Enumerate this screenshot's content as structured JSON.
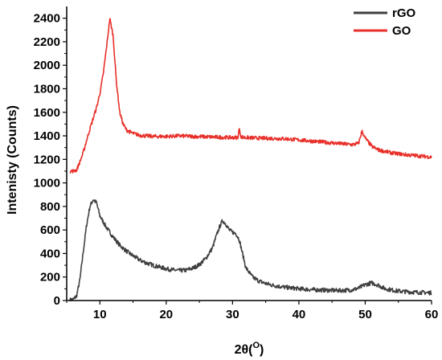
{
  "chart_data": {
    "type": "line",
    "xlabel": "2θ(",
    "xlabel_sup": "O",
    "xlabel_close": ")",
    "ylabel": "Intenisty (Counts)",
    "xlim": [
      5,
      60
    ],
    "ylim": [
      0,
      2500
    ],
    "x_ticks": [
      10,
      20,
      30,
      40,
      50,
      60
    ],
    "y_ticks": [
      0,
      200,
      400,
      600,
      800,
      1000,
      1200,
      1400,
      1600,
      1800,
      2000,
      2200,
      2400
    ],
    "grid": false,
    "legend_position": "top-right",
    "series": [
      {
        "name": "rGO",
        "color": "#404040",
        "points": [
          [
            5.5,
            5
          ],
          [
            6.0,
            10
          ],
          [
            6.5,
            40
          ],
          [
            7.0,
            180
          ],
          [
            7.5,
            420
          ],
          [
            8.0,
            640
          ],
          [
            8.5,
            800
          ],
          [
            9.0,
            860
          ],
          [
            9.5,
            830
          ],
          [
            10.0,
            720
          ],
          [
            11.0,
            620
          ],
          [
            12.0,
            540
          ],
          [
            13.0,
            470
          ],
          [
            14.0,
            420
          ],
          [
            15.0,
            380
          ],
          [
            16.0,
            345
          ],
          [
            17.0,
            320
          ],
          [
            18.0,
            300
          ],
          [
            19.0,
            285
          ],
          [
            20.0,
            270
          ],
          [
            21.0,
            260
          ],
          [
            22.0,
            255
          ],
          [
            23.0,
            258
          ],
          [
            24.0,
            275
          ],
          [
            25.0,
            305
          ],
          [
            26.0,
            360
          ],
          [
            27.0,
            450
          ],
          [
            27.5,
            540
          ],
          [
            28.0,
            620
          ],
          [
            28.5,
            680
          ],
          [
            29.0,
            650
          ],
          [
            29.5,
            600
          ],
          [
            30.0,
            580
          ],
          [
            30.5,
            570
          ],
          [
            31.0,
            520
          ],
          [
            31.5,
            400
          ],
          [
            32.0,
            280
          ],
          [
            33.0,
            200
          ],
          [
            34.0,
            165
          ],
          [
            35.0,
            145
          ],
          [
            36.0,
            130
          ],
          [
            38.0,
            112
          ],
          [
            40.0,
            100
          ],
          [
            42.0,
            92
          ],
          [
            44.0,
            88
          ],
          [
            46.0,
            85
          ],
          [
            48.0,
            90
          ],
          [
            49.0,
            105
          ],
          [
            50.0,
            135
          ],
          [
            51.0,
            150
          ],
          [
            52.0,
            130
          ],
          [
            53.0,
            100
          ],
          [
            55.0,
            80
          ],
          [
            57.0,
            72
          ],
          [
            60.0,
            65
          ]
        ]
      },
      {
        "name": "GO",
        "color": "#e8302a",
        "points": [
          [
            5.5,
            1100
          ],
          [
            6.0,
            1100
          ],
          [
            6.5,
            1110
          ],
          [
            7.0,
            1180
          ],
          [
            7.5,
            1260
          ],
          [
            8.0,
            1360
          ],
          [
            8.5,
            1460
          ],
          [
            9.0,
            1550
          ],
          [
            9.5,
            1640
          ],
          [
            10.0,
            1760
          ],
          [
            10.5,
            1920
          ],
          [
            11.0,
            2150
          ],
          [
            11.5,
            2400
          ],
          [
            12.0,
            2250
          ],
          [
            12.5,
            1850
          ],
          [
            13.0,
            1600
          ],
          [
            13.5,
            1500
          ],
          [
            14.0,
            1450
          ],
          [
            15.0,
            1420
          ],
          [
            16.0,
            1405
          ],
          [
            18.0,
            1395
          ],
          [
            20.0,
            1395
          ],
          [
            22.0,
            1400
          ],
          [
            24.0,
            1395
          ],
          [
            26.0,
            1392
          ],
          [
            28.0,
            1388
          ],
          [
            30.0,
            1385
          ],
          [
            30.8,
            1385
          ],
          [
            31.0,
            1460
          ],
          [
            31.3,
            1390
          ],
          [
            32.0,
            1385
          ],
          [
            34.0,
            1380
          ],
          [
            36.0,
            1378
          ],
          [
            38.0,
            1375
          ],
          [
            40.0,
            1365
          ],
          [
            42.0,
            1355
          ],
          [
            44.0,
            1345
          ],
          [
            46.0,
            1335
          ],
          [
            48.0,
            1325
          ],
          [
            49.0,
            1335
          ],
          [
            49.5,
            1440
          ],
          [
            50.0,
            1380
          ],
          [
            51.0,
            1310
          ],
          [
            52.0,
            1280
          ],
          [
            54.0,
            1255
          ],
          [
            56.0,
            1240
          ],
          [
            58.0,
            1230
          ],
          [
            60.0,
            1220
          ]
        ]
      }
    ]
  }
}
